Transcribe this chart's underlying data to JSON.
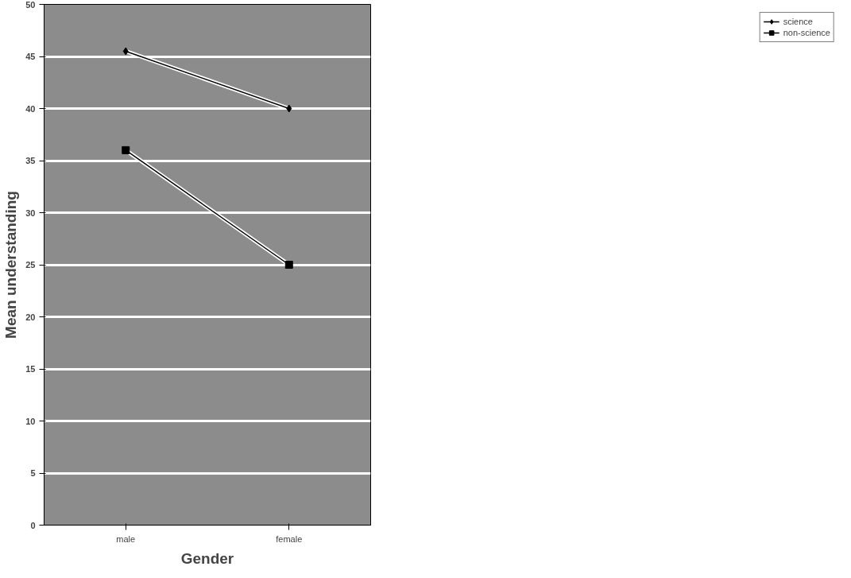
{
  "chart_data": {
    "type": "line",
    "xlabel": "Gender",
    "ylabel": "Mean understanding",
    "categories": [
      "male",
      "female"
    ],
    "series": [
      {
        "name": "science",
        "color": "#000000",
        "values": [
          45.5,
          40
        ],
        "marker": "diamond"
      },
      {
        "name": "non-science",
        "color": "#000000",
        "values": [
          36,
          25
        ],
        "marker": "square"
      }
    ],
    "ylim": [
      0,
      50
    ],
    "yticks": [
      0,
      5,
      10,
      15,
      20,
      25,
      30,
      35,
      40,
      45,
      50
    ],
    "grid": "y",
    "legend": "right",
    "line_style": "solid"
  }
}
